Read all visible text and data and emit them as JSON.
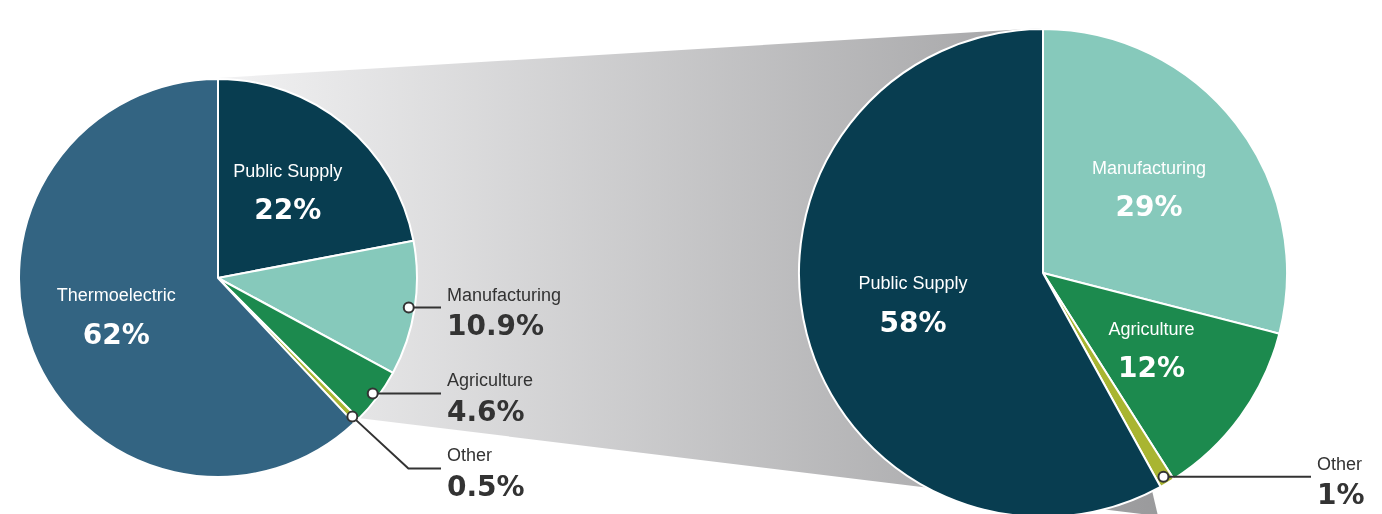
{
  "chart_data": [
    {
      "type": "pie",
      "categories": [
        "Public Supply",
        "Manufacturing",
        "Agriculture",
        "Other",
        "Thermoelectric"
      ],
      "values": [
        22,
        10.9,
        4.6,
        0.5,
        62
      ],
      "colors": [
        "#083d50",
        "#86c9bb",
        "#1c8a4e",
        "#a9b531",
        "#336482"
      ],
      "value_labels": [
        "22%",
        "10.9%",
        "4.6%",
        "0.5%",
        "62%"
      ]
    },
    {
      "type": "pie",
      "categories": [
        "Manufacturing",
        "Agriculture",
        "Other",
        "Public Supply"
      ],
      "values": [
        29,
        12,
        1,
        58
      ],
      "colors": [
        "#86c9bb",
        "#1c8a4e",
        "#a9b531",
        "#083d50"
      ],
      "value_labels": [
        "29%",
        "12%",
        "1%",
        "58%"
      ]
    }
  ]
}
